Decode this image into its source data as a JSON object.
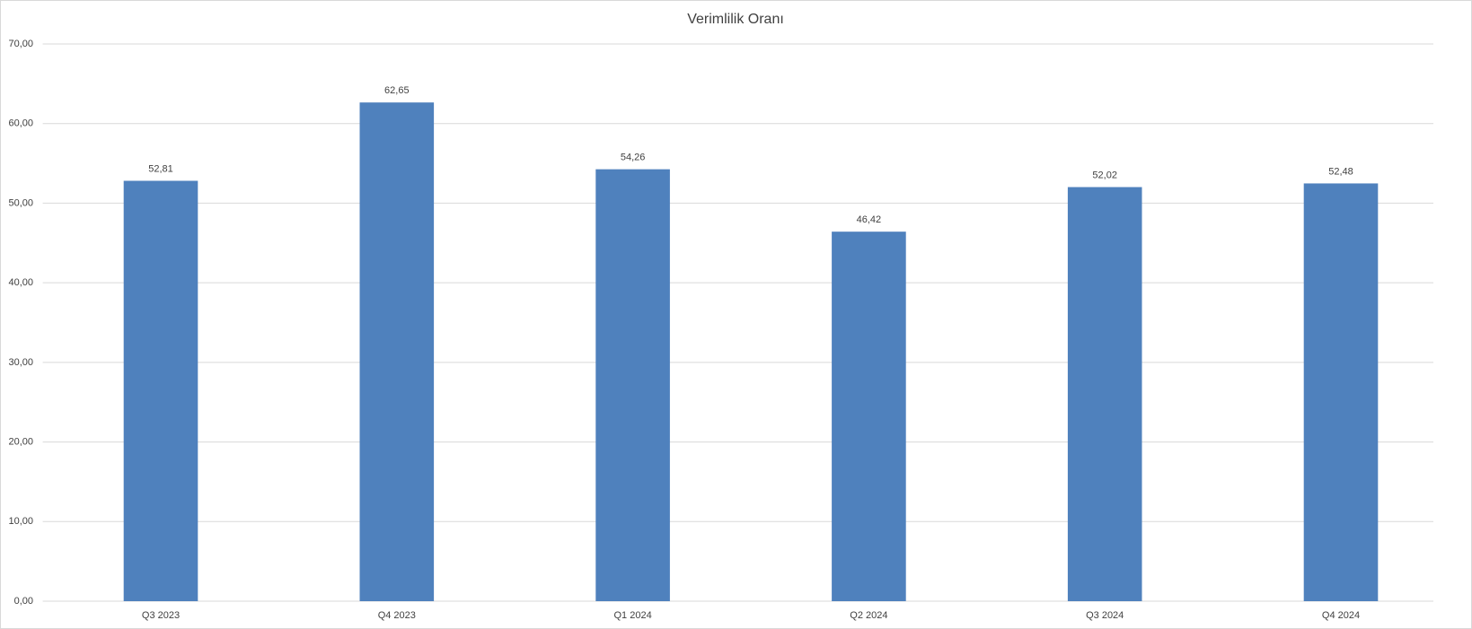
{
  "chart_data": {
    "type": "bar",
    "title": "Verimlilik Oranı",
    "categories": [
      "Q3 2023",
      "Q4 2023",
      "Q1 2024",
      "Q2 2024",
      "Q3 2024",
      "Q4 2024"
    ],
    "values": [
      52.81,
      62.65,
      54.26,
      46.42,
      52.02,
      52.48
    ],
    "value_labels": [
      "52,81",
      "62,65",
      "54,26",
      "46,42",
      "52,02",
      "52,48"
    ],
    "color": "#4f81bd",
    "ylim": [
      0,
      70
    ],
    "yticks": [
      {
        "value": 0,
        "label": "0,00"
      },
      {
        "value": 10,
        "label": "10,00"
      },
      {
        "value": 20,
        "label": "20,00"
      },
      {
        "value": 30,
        "label": "30,00"
      },
      {
        "value": 40,
        "label": "40,00"
      },
      {
        "value": 50,
        "label": "50,00"
      },
      {
        "value": 60,
        "label": "60,00"
      },
      {
        "value": 70,
        "label": "70,00"
      }
    ],
    "grid": true
  }
}
